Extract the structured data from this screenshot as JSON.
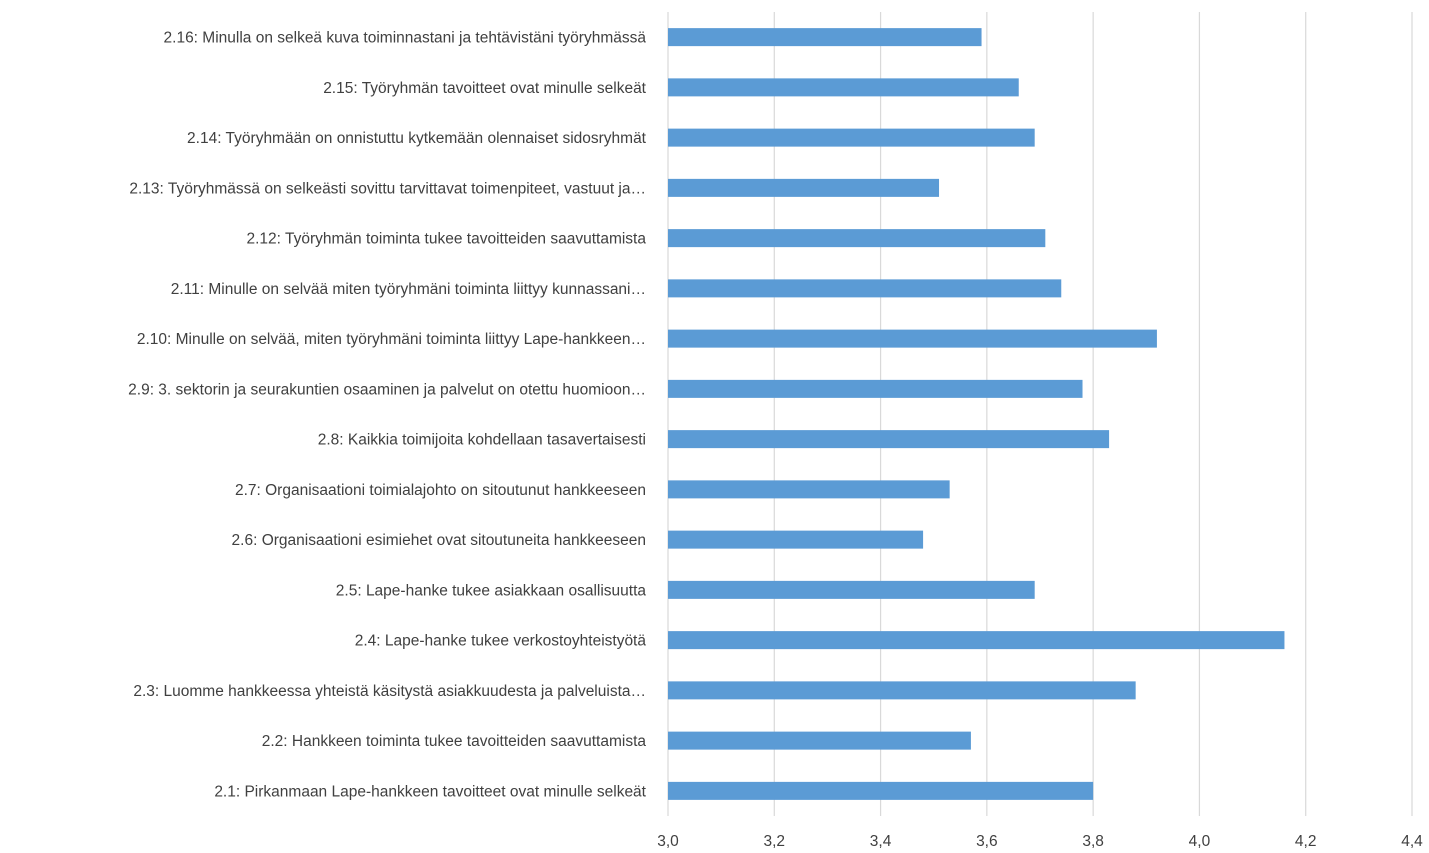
{
  "chart_data": {
    "type": "bar",
    "orientation": "horizontal",
    "title": "",
    "xlabel": "",
    "ylabel": "",
    "xlim": [
      3.0,
      4.4
    ],
    "grid": true,
    "legend": "none",
    "bar_color": "#5b9bd5",
    "x_ticks": [
      "3,0",
      "3,2",
      "3,4",
      "3,6",
      "3,8",
      "4,0",
      "4,2",
      "4,4"
    ],
    "x_tick_values": [
      3.0,
      3.2,
      3.4,
      3.6,
      3.8,
      4.0,
      4.2,
      4.4
    ],
    "categories": [
      "2.16: Minulla on selkeä kuva toiminnastani ja tehtävistäni työryhmässä",
      "2.15: Työryhmän tavoitteet ovat minulle selkeät",
      "2.14: Työryhmään on onnistuttu kytkemään olennaiset sidosryhmät",
      "2.13: Työryhmässä on selkeästi sovittu tarvittavat toimenpiteet, vastuut ja…",
      "2.12: Työryhmän toiminta tukee tavoitteiden saavuttamista",
      "2.11: Minulle on selvää miten työryhmäni toiminta liittyy kunnassani…",
      "2.10: Minulle on selvää, miten työryhmäni toiminta liittyy Lape-hankkeen…",
      "2.9: 3. sektorin ja seurakuntien osaaminen ja palvelut on otettu huomioon…",
      "2.8: Kaikkia toimijoita kohdellaan tasavertaisesti",
      "2.7: Organisaationi toimialajohto on sitoutunut hankkeeseen",
      "2.6: Organisaationi esimiehet ovat sitoutuneita hankkeeseen",
      "2.5: Lape-hanke tukee asiakkaan osallisuutta",
      "2.4: Lape-hanke tukee verkostoyhteistyötä",
      "2.3: Luomme hankkeessa yhteistä käsitystä asiakkuudesta ja palveluista…",
      "2.2: Hankkeen toiminta tukee tavoitteiden saavuttamista",
      "2.1: Pirkanmaan Lape-hankkeen tavoitteet ovat minulle selkeät"
    ],
    "values": [
      3.59,
      3.66,
      3.69,
      3.51,
      3.71,
      3.74,
      3.92,
      3.78,
      3.83,
      3.53,
      3.48,
      3.69,
      4.16,
      3.88,
      3.57,
      3.8
    ]
  }
}
